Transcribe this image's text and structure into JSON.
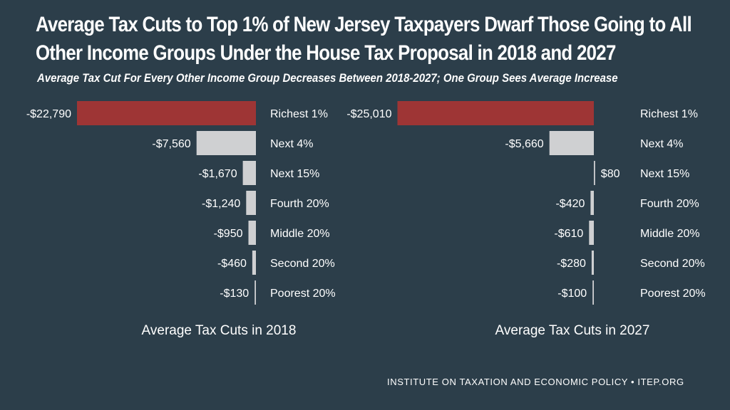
{
  "title_line1": "Average Tax Cuts to Top 1% of New Jersey Taxpayers Dwarf Those Going to All",
  "title_line2": "Other Income Groups Under the House Tax Proposal in 2018 and 2027",
  "subtitle": "Average Tax Cut For Every Other Income Group Decreases Between 2018-2027;  One Group Sees Average Increase",
  "footer": "INSTITUTE ON TAXATION AND ECONOMIC POLICY • ITEP.ORG",
  "colors": {
    "background": "#2c3e4a",
    "highlight": "#9e3535",
    "bar": "#cfd0d2"
  },
  "chart_data": [
    {
      "type": "bar",
      "orientation": "horizontal",
      "title": "Average Tax Cuts in 2018",
      "categories": [
        "Richest 1%",
        "Next 4%",
        "Next 15%",
        "Fourth 20%",
        "Middle 20%",
        "Second 20%",
        "Poorest 20%"
      ],
      "values": [
        -22790,
        -7560,
        -1670,
        -1240,
        -950,
        -460,
        -130
      ],
      "value_labels": [
        "-$22,790",
        "-$7,560",
        "-$1,670",
        "-$1,240",
        "-$950",
        "-$460",
        "-$130"
      ],
      "highlight_index": 0
    },
    {
      "type": "bar",
      "orientation": "horizontal",
      "title": "Average Tax Cuts in 2027",
      "categories": [
        "Richest 1%",
        "Next 4%",
        "Next 15%",
        "Fourth 20%",
        "Middle 20%",
        "Second 20%",
        "Poorest 20%"
      ],
      "values": [
        -25010,
        -5660,
        80,
        -420,
        -610,
        -280,
        -100
      ],
      "value_labels": [
        "-$25,010",
        "-$5,660",
        "$80",
        "-$420",
        "-$610",
        "-$280",
        "-$100"
      ],
      "highlight_index": 0
    }
  ]
}
